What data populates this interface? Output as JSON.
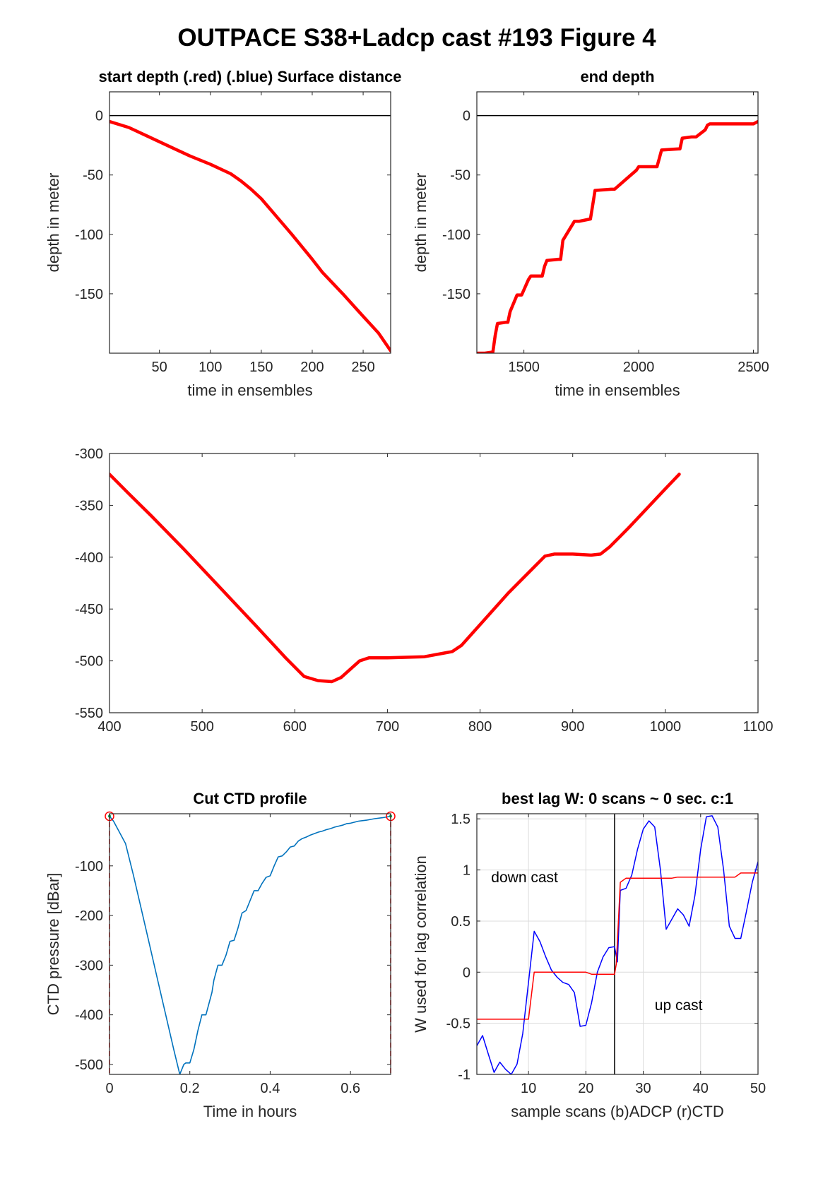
{
  "figure": {
    "title": "OUTPACE S38+Ladcp cast #193   Figure 4"
  },
  "chart_data": [
    {
      "id": "start",
      "type": "line",
      "title": "start depth (.red) (.blue) Surface distance",
      "xlabel": "time in ensembles",
      "ylabel": "depth in meter",
      "xlim": [
        1,
        277
      ],
      "ylim": [
        -200,
        20
      ],
      "xticks": [
        50,
        100,
        150,
        200,
        250
      ],
      "yticks": [
        0,
        -50,
        -100,
        -150
      ],
      "grid": false,
      "hline": 0,
      "series": [
        {
          "color": "#ff0000",
          "x": [
            1,
            20,
            40,
            60,
            80,
            100,
            120,
            130,
            140,
            150,
            160,
            180,
            200,
            210,
            230,
            250,
            265,
            277
          ],
          "y": [
            -5,
            -10,
            -18,
            -26,
            -34,
            -41,
            -49,
            -55,
            -62,
            -70,
            -80,
            -100,
            -121,
            -132,
            -150,
            -169,
            -183,
            -198
          ]
        }
      ]
    },
    {
      "id": "end",
      "type": "line",
      "title": "end depth",
      "xlabel": "time in ensembles",
      "ylabel": "depth in meter",
      "xlim": [
        1295,
        2520
      ],
      "ylim": [
        -200,
        20
      ],
      "xticks": [
        1500,
        2000,
        2500
      ],
      "yticks": [
        0,
        -50,
        -100,
        -150
      ],
      "grid": false,
      "hline": 0,
      "series": [
        {
          "color": "#ff0000",
          "x": [
            1300,
            1330,
            1365,
            1375,
            1385,
            1420,
            1430,
            1440,
            1470,
            1480,
            1490,
            1520,
            1530,
            1540,
            1580,
            1590,
            1600,
            1650,
            1660,
            1670,
            1720,
            1730,
            1740,
            1790,
            1800,
            1810,
            1880,
            1885,
            1895,
            1990,
            2000,
            2010,
            2080,
            2090,
            2100,
            2175,
            2180,
            2190,
            2230,
            2240,
            2250,
            2290,
            2300,
            2310,
            2360,
            2375,
            2390,
            2500,
            2520
          ],
          "y": [
            -200,
            -200,
            -199,
            -185,
            -175,
            -174,
            -174,
            -165,
            -151,
            -151,
            -151,
            -138,
            -135,
            -135,
            -135,
            -127,
            -122,
            -121,
            -121,
            -105,
            -89,
            -89,
            -89,
            -87,
            -75,
            -63,
            -62,
            -62,
            -62,
            -46,
            -43,
            -43,
            -43,
            -36,
            -29,
            -28,
            -28,
            -19,
            -18,
            -18,
            -18,
            -12,
            -8,
            -7,
            -7,
            -7,
            -7,
            -7,
            -5
          ]
        }
      ]
    },
    {
      "id": "depth",
      "type": "line",
      "xlim": [
        400,
        1100
      ],
      "ylim": [
        -550,
        -300
      ],
      "xticks": [
        400,
        500,
        600,
        700,
        800,
        900,
        1000,
        1100
      ],
      "yticks": [
        -300,
        -350,
        -400,
        -450,
        -500,
        -550
      ],
      "grid": false,
      "series": [
        {
          "color": "#ff0000",
          "x": [
            400,
            420,
            445,
            480,
            520,
            560,
            590,
            610,
            625,
            640,
            650,
            660,
            670,
            680,
            700,
            740,
            770,
            780,
            800,
            830,
            860,
            870,
            880,
            900,
            920,
            930,
            940,
            950,
            960,
            1000,
            1015
          ],
          "y": [
            -320,
            -338,
            -360,
            -392,
            -430,
            -468,
            -497,
            -515,
            -519,
            -520,
            -516,
            -508,
            -500,
            -497,
            -497,
            -496,
            -491,
            -485,
            -465,
            -435,
            -408,
            -399,
            -397,
            -397,
            -398,
            -397,
            -390,
            -381,
            -372,
            -334,
            -320
          ]
        }
      ]
    },
    {
      "id": "ctd",
      "type": "line",
      "title": "Cut CTD profile",
      "xlabel": "Time in hours",
      "ylabel": "CTD pressure [dBar]",
      "xlim": [
        0,
        0.7
      ],
      "ylim": [
        -520,
        5
      ],
      "xticks": [
        0,
        0.2,
        0.4,
        0.6
      ],
      "xticklabels": [
        "0",
        "0.2",
        "0.4",
        "0.6"
      ],
      "yticks": [
        -100,
        -200,
        -300,
        -400,
        -500
      ],
      "grid": false,
      "series": [
        {
          "color": "#0072bd",
          "x": [
            0,
            0.01,
            0.02,
            0.04,
            0.06,
            0.08,
            0.1,
            0.12,
            0.14,
            0.16,
            0.175,
            0.185,
            0.19,
            0.2,
            0.21,
            0.22,
            0.23,
            0.24,
            0.255,
            0.26,
            0.27,
            0.28,
            0.29,
            0.3,
            0.31,
            0.32,
            0.33,
            0.34,
            0.35,
            0.36,
            0.37,
            0.38,
            0.39,
            0.4,
            0.41,
            0.42,
            0.43,
            0.44,
            0.45,
            0.46,
            0.47,
            0.48,
            0.49,
            0.5,
            0.51,
            0.52,
            0.53,
            0.54,
            0.55,
            0.56,
            0.57,
            0.58,
            0.59,
            0.6,
            0.62,
            0.64,
            0.66,
            0.68,
            0.7
          ],
          "y": [
            0,
            -10,
            -25,
            -55,
            -120,
            -190,
            -260,
            -330,
            -400,
            -470,
            -520,
            -500,
            -497,
            -497,
            -470,
            -432,
            -400,
            -400,
            -355,
            -330,
            -300,
            -300,
            -280,
            -252,
            -250,
            -225,
            -195,
            -190,
            -170,
            -150,
            -150,
            -135,
            -123,
            -120,
            -100,
            -82,
            -80,
            -72,
            -62,
            -60,
            -50,
            -45,
            -42,
            -38,
            -35,
            -32,
            -30,
            -27,
            -25,
            -22,
            -20,
            -18,
            -15,
            -14,
            -10,
            -8,
            -5,
            -3,
            0
          ]
        }
      ],
      "cut_markers": {
        "color": "#ff0000",
        "x": [
          0,
          0.7
        ],
        "y": 0
      },
      "marker_dot_color": "#00b050"
    },
    {
      "id": "lag",
      "type": "line",
      "title": "best lag W: 0 scans ~ 0 sec.  c:1",
      "xlabel": "sample scans (b)ADCP (r)CTD",
      "ylabel": "W used for lag correlation",
      "xlim": [
        1,
        50
      ],
      "ylim": [
        -1,
        1.55
      ],
      "xticks": [
        10,
        20,
        30,
        40,
        50
      ],
      "yticks": [
        1.5,
        1,
        0.5,
        0,
        -0.5,
        -1
      ],
      "yticklabels": [
        "1.5",
        "1",
        "0.5",
        "0",
        "-0.5",
        "-1"
      ],
      "grid": true,
      "vline": 25,
      "annotations": [
        {
          "text": "down cast",
          "x": 3.5,
          "y": 0.88
        },
        {
          "text": "up cast",
          "x": 32,
          "y": -0.37
        }
      ],
      "series": [
        {
          "name": "ADCP",
          "color": "#0000ff",
          "x": [
            1,
            2,
            3,
            4,
            5,
            6,
            7,
            8,
            9,
            10,
            11,
            12,
            13,
            14,
            15,
            16,
            17,
            18,
            19,
            20,
            21,
            22,
            23,
            24,
            25,
            25.5,
            26,
            27,
            28,
            29,
            30,
            31,
            32,
            33,
            34,
            35,
            36,
            37,
            38,
            39,
            40,
            41,
            42,
            43,
            44,
            45,
            46,
            47,
            48,
            49,
            50
          ],
          "y": [
            -0.72,
            -0.62,
            -0.8,
            -0.98,
            -0.88,
            -0.95,
            -1.0,
            -0.9,
            -0.6,
            -0.1,
            0.4,
            0.3,
            0.15,
            0.02,
            -0.05,
            -0.1,
            -0.12,
            -0.2,
            -0.53,
            -0.52,
            -0.3,
            0.0,
            0.15,
            0.24,
            0.25,
            0.1,
            0.8,
            0.82,
            0.95,
            1.2,
            1.4,
            1.48,
            1.42,
            1.0,
            0.42,
            0.52,
            0.62,
            0.56,
            0.45,
            0.75,
            1.2,
            1.52,
            1.53,
            1.42,
            1.0,
            0.45,
            0.33,
            0.33,
            0.6,
            0.88,
            1.08
          ]
        },
        {
          "name": "CTD",
          "color": "#ff0000",
          "x": [
            1,
            10,
            11,
            20,
            21,
            25,
            25.3,
            26,
            27,
            35,
            36,
            44,
            45,
            46,
            47,
            50
          ],
          "y": [
            -0.46,
            -0.46,
            0,
            0,
            -0.02,
            -0.02,
            0.08,
            0.88,
            0.92,
            0.92,
            0.93,
            0.93,
            0.93,
            0.93,
            0.97,
            0.97
          ]
        }
      ]
    }
  ]
}
